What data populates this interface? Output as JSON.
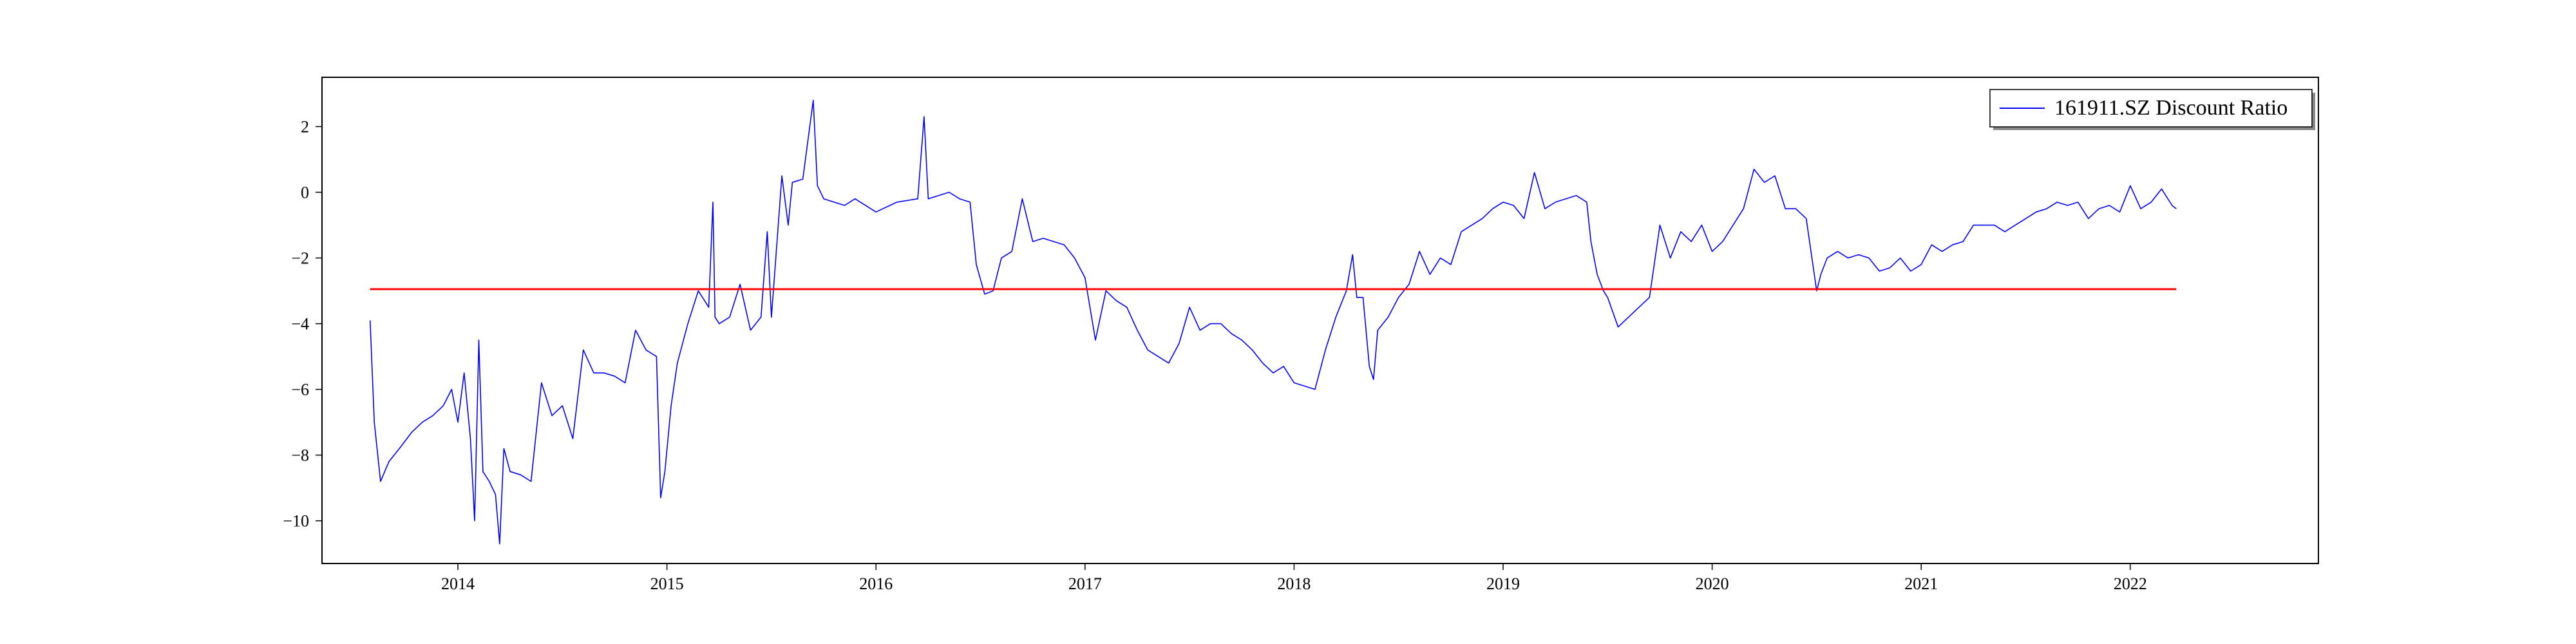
{
  "chart_data": {
    "type": "line",
    "title": "",
    "xlabel": "",
    "ylabel": "",
    "xlim": [
      2013.35,
      2022.9
    ],
    "ylim": [
      -11.3,
      3.5
    ],
    "grid": false,
    "legend_placement": "top-right",
    "x_ticks": [
      {
        "value": 2014,
        "label": "2014"
      },
      {
        "value": 2015,
        "label": "2015"
      },
      {
        "value": 2016,
        "label": "2016"
      },
      {
        "value": 2017,
        "label": "2017"
      },
      {
        "value": 2018,
        "label": "2018"
      },
      {
        "value": 2019,
        "label": "2019"
      },
      {
        "value": 2020,
        "label": "2020"
      },
      {
        "value": 2021,
        "label": "2021"
      },
      {
        "value": 2022,
        "label": "2022"
      }
    ],
    "y_ticks": [
      {
        "value": 2,
        "label": "2"
      },
      {
        "value": 0,
        "label": "0"
      },
      {
        "value": -2,
        "label": "−2"
      },
      {
        "value": -4,
        "label": "−4"
      },
      {
        "value": -6,
        "label": "−6"
      },
      {
        "value": -8,
        "label": "−8"
      },
      {
        "value": -10,
        "label": "−10"
      }
    ],
    "series": [
      {
        "name": "161911.SZ Discount Ratio",
        "color": "#0000ff",
        "x": [
          2013.58,
          2013.6,
          2013.63,
          2013.67,
          2013.72,
          2013.78,
          2013.83,
          2013.88,
          2013.93,
          2013.97,
          2014.0,
          2014.03,
          2014.06,
          2014.08,
          2014.1,
          2014.12,
          2014.15,
          2014.18,
          2014.2,
          2014.22,
          2014.25,
          2014.3,
          2014.35,
          2014.4,
          2014.45,
          2014.5,
          2014.55,
          2014.6,
          2014.65,
          2014.7,
          2014.75,
          2014.8,
          2014.85,
          2014.9,
          2014.95,
          2014.97,
          2014.99,
          2015.02,
          2015.05,
          2015.1,
          2015.15,
          2015.2,
          2015.22,
          2015.23,
          2015.25,
          2015.3,
          2015.35,
          2015.4,
          2015.45,
          2015.48,
          2015.5,
          2015.55,
          2015.58,
          2015.6,
          2015.65,
          2015.7,
          2015.72,
          2015.75,
          2015.8,
          2015.85,
          2015.9,
          2016.0,
          2016.1,
          2016.2,
          2016.23,
          2016.25,
          2016.3,
          2016.35,
          2016.4,
          2016.45,
          2016.48,
          2016.52,
          2016.56,
          2016.6,
          2016.65,
          2016.7,
          2016.75,
          2016.8,
          2016.9,
          2016.95,
          2017.0,
          2017.05,
          2017.1,
          2017.15,
          2017.2,
          2017.25,
          2017.3,
          2017.35,
          2017.4,
          2017.45,
          2017.5,
          2017.55,
          2017.6,
          2017.65,
          2017.7,
          2017.75,
          2017.8,
          2017.85,
          2017.9,
          2017.95,
          2018.0,
          2018.05,
          2018.1,
          2018.15,
          2018.2,
          2018.25,
          2018.28,
          2018.3,
          2018.33,
          2018.36,
          2018.38,
          2018.4,
          2018.45,
          2018.5,
          2018.55,
          2018.6,
          2018.65,
          2018.7,
          2018.75,
          2018.8,
          2018.85,
          2018.9,
          2018.95,
          2019.0,
          2019.05,
          2019.1,
          2019.15,
          2019.2,
          2019.25,
          2019.3,
          2019.35,
          2019.4,
          2019.42,
          2019.45,
          2019.48,
          2019.5,
          2019.55,
          2019.6,
          2019.65,
          2019.7,
          2019.75,
          2019.8,
          2019.85,
          2019.9,
          2019.95,
          2020.0,
          2020.05,
          2020.1,
          2020.15,
          2020.2,
          2020.25,
          2020.3,
          2020.35,
          2020.4,
          2020.45,
          2020.5,
          2020.52,
          2020.55,
          2020.6,
          2020.65,
          2020.7,
          2020.75,
          2020.8,
          2020.85,
          2020.9,
          2020.95,
          2021.0,
          2021.05,
          2021.1,
          2021.15,
          2021.2,
          2021.25,
          2021.3,
          2021.35,
          2021.4,
          2021.45,
          2021.5,
          2021.55,
          2021.6,
          2021.65,
          2021.7,
          2021.75,
          2021.8,
          2021.85,
          2021.9,
          2021.95,
          2022.0,
          2022.05,
          2022.1,
          2022.15,
          2022.2,
          2022.22
        ],
        "values": [
          -3.9,
          -7.0,
          -8.8,
          -8.2,
          -7.8,
          -7.3,
          -7.0,
          -6.8,
          -6.5,
          -6.0,
          -7.0,
          -5.5,
          -7.5,
          -10.0,
          -4.5,
          -8.5,
          -8.8,
          -9.2,
          -10.7,
          -7.8,
          -8.5,
          -8.6,
          -8.8,
          -5.8,
          -6.8,
          -6.5,
          -7.5,
          -4.8,
          -5.5,
          -5.5,
          -5.6,
          -5.8,
          -4.2,
          -4.8,
          -5.0,
          -9.3,
          -8.5,
          -6.5,
          -5.2,
          -4.0,
          -3.0,
          -3.5,
          -0.3,
          -3.8,
          -4.0,
          -3.8,
          -2.8,
          -4.2,
          -3.8,
          -1.2,
          -3.8,
          0.5,
          -1.0,
          0.3,
          0.4,
          2.8,
          0.2,
          -0.2,
          -0.3,
          -0.4,
          -0.2,
          -0.6,
          -0.3,
          -0.2,
          2.3,
          -0.2,
          -0.1,
          0.0,
          -0.2,
          -0.3,
          -2.2,
          -3.1,
          -3.0,
          -2.0,
          -1.8,
          -0.2,
          -1.5,
          -1.4,
          -1.6,
          -2.0,
          -2.6,
          -4.5,
          -3.0,
          -3.3,
          -3.5,
          -4.2,
          -4.8,
          -5.0,
          -5.2,
          -4.6,
          -3.5,
          -4.2,
          -4.0,
          -4.0,
          -4.3,
          -4.5,
          -4.8,
          -5.2,
          -5.5,
          -5.3,
          -5.8,
          -5.9,
          -6.0,
          -4.8,
          -3.8,
          -3.0,
          -1.9,
          -3.2,
          -3.2,
          -5.3,
          -5.7,
          -4.2,
          -3.8,
          -3.2,
          -2.8,
          -1.8,
          -2.5,
          -2.0,
          -2.2,
          -1.2,
          -1.0,
          -0.8,
          -0.5,
          -0.3,
          -0.4,
          -0.8,
          0.6,
          -0.5,
          -0.3,
          -0.2,
          -0.1,
          -0.3,
          -1.5,
          -2.5,
          -3.0,
          -3.2,
          -4.1,
          -3.8,
          -3.5,
          -3.2,
          -1.0,
          -2.0,
          -1.2,
          -1.5,
          -1.0,
          -1.8,
          -1.5,
          -1.0,
          -0.5,
          0.7,
          0.3,
          0.5,
          -0.5,
          -0.5,
          -0.8,
          -3.0,
          -2.5,
          -2.0,
          -1.8,
          -2.0,
          -1.9,
          -2.0,
          -2.4,
          -2.3,
          -2.0,
          -2.4,
          -2.2,
          -1.6,
          -1.8,
          -1.6,
          -1.5,
          -1.0,
          -1.0,
          -1.0,
          -1.2,
          -1.0,
          -0.8,
          -0.6,
          -0.5,
          -0.3,
          -0.4,
          -0.3,
          -0.8,
          -0.5,
          -0.4,
          -0.6,
          0.2,
          -0.5,
          -0.3,
          0.1,
          -0.4,
          -0.5
        ]
      },
      {
        "name": "",
        "color": "#ff0000",
        "x": [
          2013.58,
          2022.22
        ],
        "values": [
          -2.95,
          -2.95
        ]
      }
    ]
  }
}
